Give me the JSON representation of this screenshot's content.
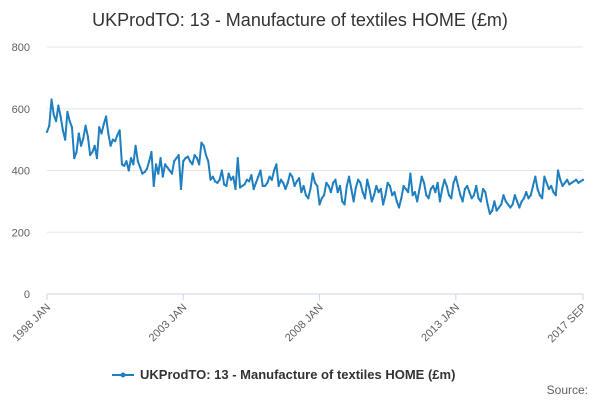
{
  "chart_data": {
    "type": "line",
    "title": "UKProdTO: 13 - Manufacture of textiles HOME (£m)",
    "xlabel": "",
    "ylabel": "",
    "ylim": [
      0,
      800
    ],
    "yticks": [
      "0",
      "200",
      "400",
      "600",
      "800"
    ],
    "x_range": [
      "1998 JAN",
      "2017 SEP"
    ],
    "xticks": [
      {
        "label": "1998 JAN",
        "index": 0
      },
      {
        "label": "2003 JAN",
        "index": 60
      },
      {
        "label": "2008 JAN",
        "index": 120
      },
      {
        "label": "2013 JAN",
        "index": 180
      },
      {
        "label": "2017 SEP",
        "index": 236
      }
    ],
    "grid": "horizontal",
    "legend_position": "bottom-center",
    "series": [
      {
        "name": "UKProdTO: 13 - Manufacture of textiles HOME (£m)",
        "color": "#1f7fbf",
        "start": "1998 JAN",
        "frequency": "monthly",
        "values": [
          525,
          545,
          630,
          580,
          560,
          610,
          575,
          530,
          500,
          590,
          560,
          540,
          440,
          460,
          520,
          480,
          505,
          545,
          510,
          450,
          460,
          480,
          440,
          540,
          520,
          550,
          575,
          520,
          480,
          500,
          495,
          515,
          530,
          420,
          415,
          430,
          400,
          440,
          420,
          480,
          430,
          410,
          390,
          395,
          405,
          430,
          460,
          350,
          420,
          390,
          440,
          380,
          420,
          410,
          400,
          390,
          430,
          440,
          450,
          340,
          430,
          440,
          445,
          430,
          420,
          450,
          440,
          420,
          490,
          480,
          450,
          430,
          370,
          380,
          365,
          360,
          370,
          400,
          355,
          350,
          390,
          370,
          380,
          340,
          440,
          345,
          350,
          355,
          370,
          365,
          385,
          340,
          360,
          380,
          400,
          350,
          350,
          360,
          380,
          370,
          400,
          420,
          350,
          370,
          360,
          340,
          360,
          390,
          380,
          350,
          365,
          375,
          330,
          350,
          320,
          310,
          340,
          390,
          360,
          350,
          290,
          310,
          320,
          360,
          350,
          330,
          360,
          370,
          330,
          350,
          300,
          290,
          350,
          380,
          340,
          300,
          345,
          370,
          360,
          330,
          310,
          370,
          340,
          300,
          320,
          350,
          330,
          340,
          290,
          320,
          360,
          350,
          320,
          330,
          300,
          280,
          310,
          350,
          340,
          330,
          390,
          320,
          330,
          300,
          340,
          380,
          360,
          320,
          310,
          340,
          350,
          330,
          360,
          300,
          340,
          370,
          350,
          320,
          310,
          360,
          380,
          350,
          320,
          300,
          340,
          350,
          330,
          310,
          320,
          350,
          310,
          300,
          340,
          330,
          290,
          260,
          270,
          300,
          270,
          280,
          290,
          320,
          300,
          290,
          280,
          290,
          320,
          300,
          280,
          300,
          310,
          330,
          310,
          320,
          350,
          380,
          340,
          320,
          310,
          380,
          360,
          340,
          350,
          330,
          320,
          400,
          370,
          350,
          360,
          370,
          355,
          360,
          365,
          370,
          360,
          365,
          370
        ]
      }
    ],
    "source_label": "Source:"
  }
}
